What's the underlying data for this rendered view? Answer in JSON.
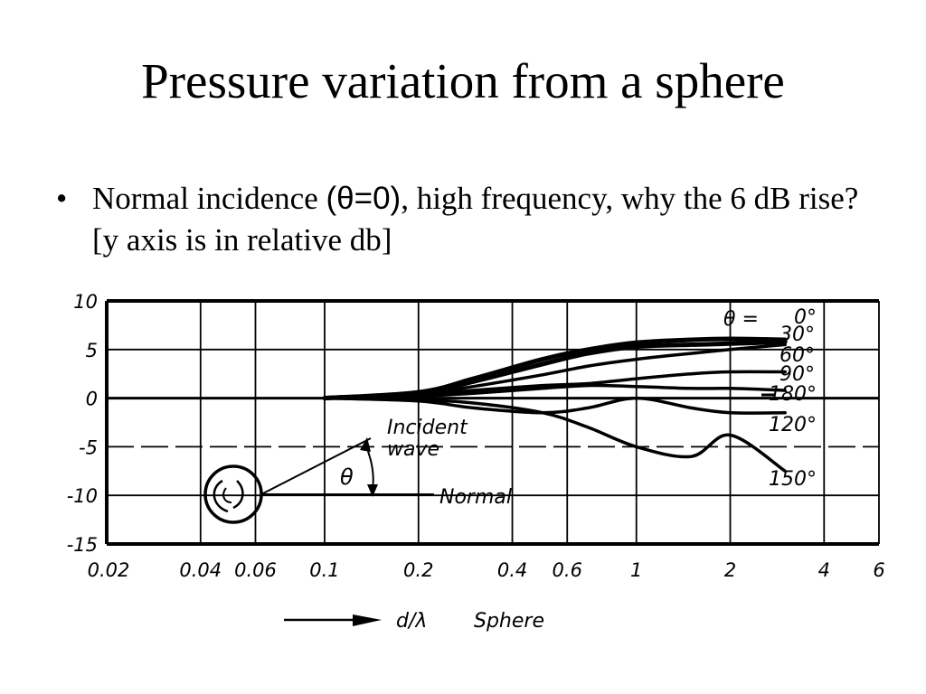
{
  "slide": {
    "title": "Pressure variation from a sphere",
    "bullet_marker": "•",
    "bullet_part1": "Normal incidence ",
    "bullet_theta": "(θ=0)",
    "bullet_part2": ", high frequency, why the 6 dB rise? [y axis is in relative db]"
  },
  "chart_data": {
    "type": "line",
    "xscale": "log",
    "xlabel": "d/λ",
    "xlabel_suffix": "Sphere",
    "xticks": [
      "0.02",
      "0.04",
      "0.06",
      "0.1",
      "0.2",
      "0.4",
      "0.6",
      "1",
      "2",
      "4",
      "6"
    ],
    "yticks": [
      "10",
      "5",
      "0",
      "-5",
      "-10",
      "-15"
    ],
    "ylim": [
      -15,
      10
    ],
    "xlim": [
      0.02,
      6
    ],
    "grid": true,
    "annotations": {
      "theta_eq": "θ =",
      "incident": "Incident",
      "wave": "wave",
      "theta": "θ",
      "normal": "Normal"
    },
    "series": [
      {
        "name": "0°",
        "x": [
          0.1,
          0.2,
          0.3,
          0.5,
          0.7,
          1.0,
          1.5,
          2.0,
          3.0
        ],
        "y": [
          0,
          0.6,
          2.0,
          4.0,
          5.0,
          5.7,
          6.0,
          6.1,
          6.0
        ]
      },
      {
        "name": "30°",
        "x": [
          0.1,
          0.2,
          0.3,
          0.5,
          0.7,
          1.0,
          1.5,
          2.0,
          3.0
        ],
        "y": [
          0,
          0.5,
          1.7,
          3.5,
          4.6,
          5.3,
          5.5,
          5.6,
          5.8
        ]
      },
      {
        "name": "60°",
        "x": [
          0.1,
          0.2,
          0.3,
          0.5,
          0.7,
          1.0,
          1.5,
          2.0,
          3.0
        ],
        "y": [
          0,
          0.4,
          1.2,
          2.4,
          3.3,
          4.0,
          4.6,
          5.0,
          5.5
        ]
      },
      {
        "name": "90°",
        "x": [
          0.1,
          0.2,
          0.3,
          0.5,
          0.7,
          1.0,
          1.5,
          2.0,
          3.0
        ],
        "y": [
          0,
          0.3,
          0.8,
          1.3,
          1.5,
          2.0,
          2.5,
          2.7,
          2.7
        ]
      },
      {
        "name": "180°",
        "x": [
          0.1,
          0.2,
          0.3,
          0.5,
          0.7,
          1.0,
          1.5,
          2.0,
          3.0
        ],
        "y": [
          0,
          0.2,
          0.5,
          1.0,
          1.3,
          1.2,
          1.0,
          1.0,
          0.8
        ]
      },
      {
        "name": "120°",
        "x": [
          0.1,
          0.2,
          0.3,
          0.5,
          0.7,
          1.0,
          1.5,
          2.0,
          3.0
        ],
        "y": [
          0,
          -0.3,
          -1.0,
          -1.5,
          -1.0,
          0,
          -1.0,
          -1.5,
          -1.5
        ]
      },
      {
        "name": "150°",
        "x": [
          0.1,
          0.2,
          0.3,
          0.5,
          0.7,
          1.0,
          1.5,
          2.0,
          3.0
        ],
        "y": [
          0,
          -0.2,
          -0.5,
          -1.5,
          -3.0,
          -5.0,
          -6.0,
          -3.8,
          -7.5
        ]
      }
    ]
  },
  "colors": {
    "background": "#ffffff",
    "ink": "#000000"
  }
}
